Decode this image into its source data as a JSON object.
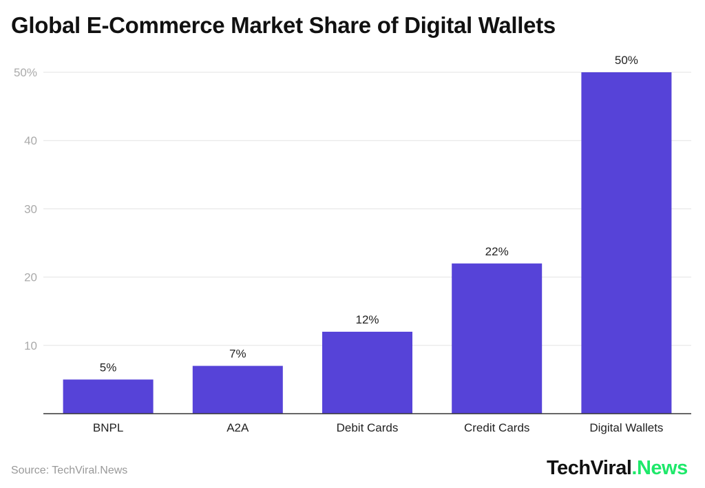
{
  "chart_data": {
    "type": "bar",
    "title": "Global E-Commerce Market Share of Digital Wallets",
    "categories": [
      "BNPL",
      "A2A",
      "Debit Cards",
      "Credit Cards",
      "Digital Wallets"
    ],
    "values": [
      5,
      7,
      12,
      22,
      50
    ],
    "data_labels": [
      "5%",
      "7%",
      "12%",
      "22%",
      "50%"
    ],
    "yticks": [
      10,
      20,
      30,
      40,
      50
    ],
    "ytick_labels": [
      "10",
      "20",
      "30",
      "40",
      "50%"
    ],
    "ylim": [
      0,
      50
    ],
    "xlabel": "",
    "ylabel": "",
    "grid": true,
    "bar_color": "#5643d8"
  },
  "footer": {
    "source": "Source: TechViral.News",
    "logo_main": "TechViral",
    "logo_accent": ".News"
  }
}
